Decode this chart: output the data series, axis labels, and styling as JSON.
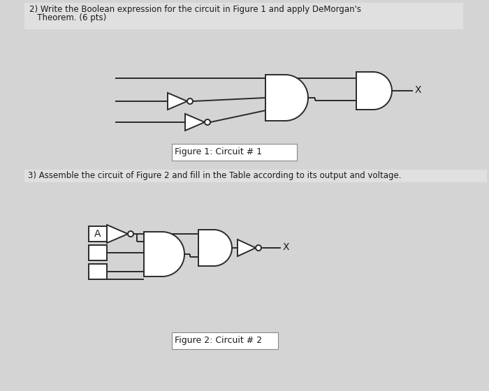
{
  "bg_color": "#d4d4d4",
  "header_color": "#e0e0e0",
  "white": "#ffffff",
  "title1_line1": "2) Write the Boolean expression for the circuit in Figure 1 and apply DeMorgan's",
  "title1_line2": "   Theorem. (6 pts)",
  "title2": "3) Assemble the circuit of Figure 2 and fill in the Table according to its output and voltage.",
  "fig1_label": "Figure 1: Circuit # 1",
  "fig2_label": "Figure 2: Circuit # 2",
  "line_color": "#2a2a2a",
  "text_color": "#1a1a1a",
  "gate_fill": "#ffffff",
  "gate_edge": "#2a2a2a",
  "lw": 1.4
}
